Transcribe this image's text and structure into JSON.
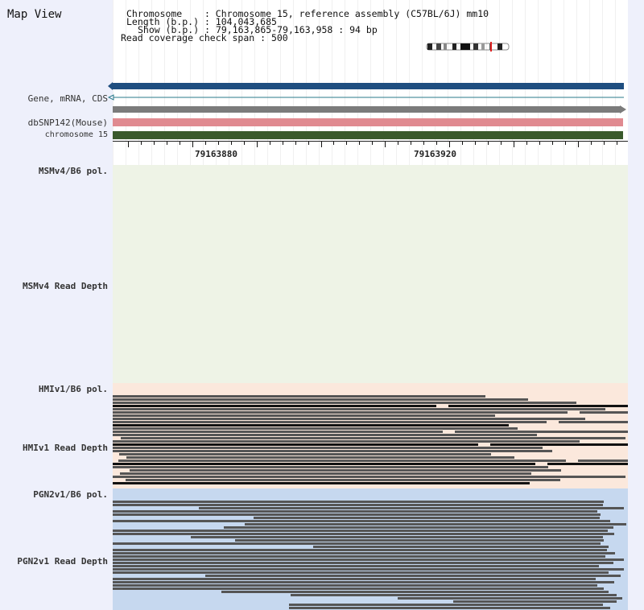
{
  "title": "Map View",
  "info": {
    "chromosome_label": "Chromosome",
    "chromosome_value": "Chromosome 15, reference assembly (C57BL/6J) mm10",
    "length_label": "Length (b.p.)",
    "length_value": "104,043,685",
    "show_label": "Show (b.p.)",
    "show_value": "79,163,865-79,163,958 : 94 bp",
    "span_label": "Read coverage check span",
    "span_value": "500"
  },
  "tracks": {
    "gene": "Gene, mRNA, CDS",
    "dbsnp": "dbSNP142(Mouse)",
    "chromosome": "chromosome 15"
  },
  "ruler": {
    "label_1": "79163880",
    "label_2": "79163920"
  },
  "samples": {
    "msm_pol": "MSMv4/B6 pol.",
    "msm_depth": "MSMv4 Read Depth",
    "hmi_pol": "HMIv1/B6 pol.",
    "hmi_depth": "HMIv1 Read Depth",
    "pgn_pol": "PGN2v1/B6 pol.",
    "pgn_depth": "PGN2v1 Read Depth"
  },
  "colors": {
    "sidebar_bg": "#eef0fb",
    "gene_track": "#1f4e80",
    "gray_track": "#7b7b7b",
    "dbsnp_track": "#e08a90",
    "chromosome_track": "#3a5a2c",
    "msm_bg": "#eef3e6",
    "hmi_bg": "#fbe8dc",
    "pgn_bg": "#c6d8ef",
    "read_color": "#555555"
  }
}
